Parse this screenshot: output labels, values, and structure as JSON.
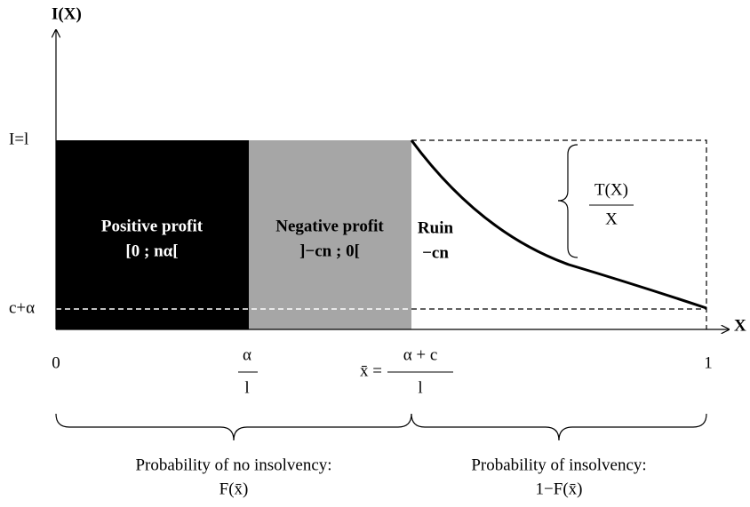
{
  "axes": {
    "y_label": "I(X)",
    "x_label": "X",
    "y_ticks": [
      "I=l",
      "c+α"
    ],
    "x_ticks": [
      "0",
      {
        "numerator": "α",
        "denominator": "l"
      },
      {
        "prefix": "x̄ =",
        "numerator": "α + c",
        "denominator": "l"
      },
      "1"
    ]
  },
  "regions": [
    {
      "title": "Positive profit",
      "range": "[0 ; nα["
    },
    {
      "title": "Negative profit",
      "range": "]−cn ; 0["
    },
    {
      "title": "Ruin",
      "range": "−cn"
    }
  ],
  "curve_label": {
    "numerator": "T(X)",
    "denominator": "X"
  },
  "braces": [
    {
      "line1": "Probability of no insolvency:",
      "line2": "F(x̄)"
    },
    {
      "line1": "Probability of insolvency:",
      "line2": "1−F(x̄)"
    }
  ]
}
